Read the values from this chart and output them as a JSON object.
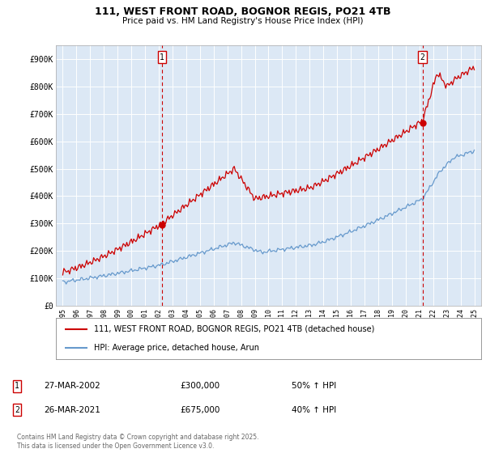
{
  "title_line1": "111, WEST FRONT ROAD, BOGNOR REGIS, PO21 4TB",
  "title_line2": "Price paid vs. HM Land Registry's House Price Index (HPI)",
  "ylim": [
    0,
    950000
  ],
  "yticks": [
    0,
    100000,
    200000,
    300000,
    400000,
    500000,
    600000,
    700000,
    800000,
    900000
  ],
  "ytick_labels": [
    "£0",
    "£100K",
    "£200K",
    "£300K",
    "£400K",
    "£500K",
    "£600K",
    "£700K",
    "£800K",
    "£900K"
  ],
  "red_color": "#cc0000",
  "blue_color": "#6699cc",
  "vline_color": "#cc0000",
  "chart_bg": "#dce8f5",
  "marker1_year": 2002.23,
  "marker1_label": "1",
  "marker1_price": 300000,
  "marker2_year": 2021.23,
  "marker2_label": "2",
  "marker2_price": 675000,
  "legend_line1": "111, WEST FRONT ROAD, BOGNOR REGIS, PO21 4TB (detached house)",
  "legend_line2": "HPI: Average price, detached house, Arun",
  "table_row1": [
    "1",
    "27-MAR-2002",
    "£300,000",
    "50% ↑ HPI"
  ],
  "table_row2": [
    "2",
    "26-MAR-2021",
    "£675,000",
    "40% ↑ HPI"
  ],
  "footer": "Contains HM Land Registry data © Crown copyright and database right 2025.\nThis data is licensed under the Open Government Licence v3.0.",
  "background_color": "#ffffff",
  "grid_color": "#ffffff"
}
